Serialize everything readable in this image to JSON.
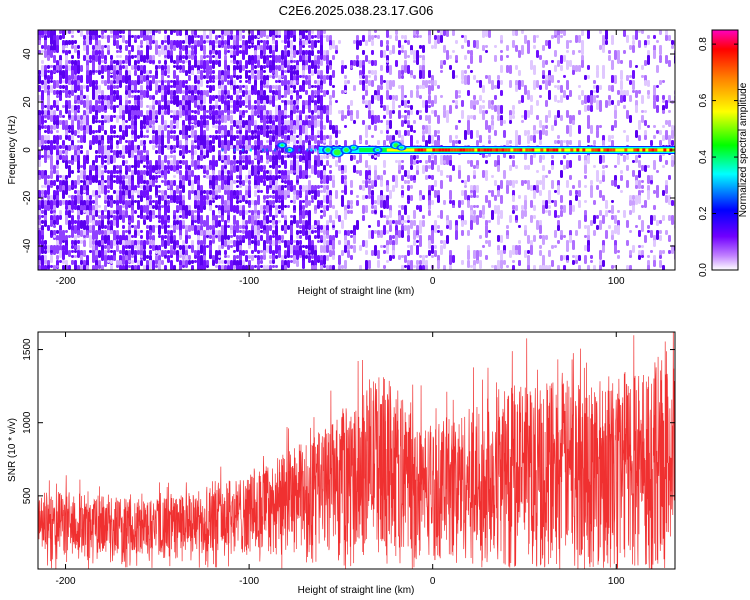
{
  "title": "C2E6.2025.038.23.17.G06",
  "chart_data": [
    {
      "type": "heatmap",
      "xlabel": "Height of straight line (km)",
      "ylabel": "Frequency (Hz)",
      "xlim": [
        -215,
        132
      ],
      "ylim": [
        -50,
        50
      ],
      "xticks": [
        -200,
        -100,
        0,
        100
      ],
      "yticks": [
        40,
        20,
        0,
        -20,
        -40
      ],
      "colorbar": {
        "label": "Normalized spectral amplitude",
        "range": [
          0.0,
          0.85
        ],
        "ticks": [
          "0.0",
          "0.2",
          "0.4",
          "0.6",
          "0.8"
        ],
        "tick_values": [
          0.0,
          0.2,
          0.4,
          0.6,
          0.8
        ],
        "colors": [
          "#ffffff",
          "#b060ff",
          "#6000ff",
          "#0000ff",
          "#00ffff",
          "#00ff00",
          "#ffff00",
          "#ff8000",
          "#ff0000",
          "#ff00ff"
        ]
      },
      "carrier_band": {
        "frequency_hz": 0,
        "x_start": -100,
        "x_end": 132,
        "peak_amplitude": 0.85
      }
    },
    {
      "type": "line",
      "xlabel": "Height of straight line (km)",
      "ylabel": "SNR (10 * v/v)",
      "xlim": [
        -215,
        132
      ],
      "ylim": [
        0,
        1620
      ],
      "xticks": [
        -200,
        -100,
        0,
        100
      ],
      "yticks": [
        500,
        1000,
        1500
      ],
      "color": "#f03030",
      "envelope": {
        "x": [
          -215,
          -200,
          -180,
          -160,
          -140,
          -120,
          -100,
          -80,
          -60,
          -40,
          -30,
          -20,
          -10,
          0,
          20,
          40,
          60,
          80,
          100,
          120,
          132
        ],
        "upper": [
          520,
          540,
          500,
          480,
          500,
          560,
          650,
          800,
          950,
          1150,
          1350,
          1250,
          1050,
          1000,
          1100,
          1250,
          1300,
          1300,
          1350,
          1400,
          1380
        ],
        "lower": [
          80,
          80,
          80,
          80,
          80,
          90,
          100,
          110,
          120,
          150,
          180,
          130,
          100,
          70,
          60,
          50,
          50,
          50,
          50,
          50,
          50
        ]
      }
    }
  ]
}
